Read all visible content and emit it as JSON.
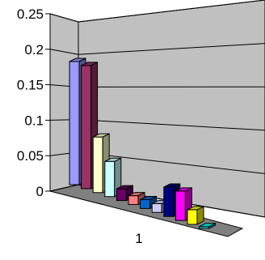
{
  "chart_data": {
    "type": "bar",
    "style": "3d-clustered-column",
    "categories": [
      "1"
    ],
    "ylim": [
      0,
      0.25
    ],
    "y_ticks": [
      "0",
      "0.05",
      "0.1",
      "0.15",
      "0.2",
      "0.25"
    ],
    "grid": true,
    "legend": "none",
    "wall_color": "#c0c0c0",
    "floor_color": "#808080",
    "series": [
      {
        "color": "#9999ff",
        "values": [
          0.21
        ]
      },
      {
        "color": "#993366",
        "values": [
          0.21
        ]
      },
      {
        "color": "#ffffcc",
        "values": [
          0.095
        ]
      },
      {
        "color": "#ccffff",
        "values": [
          0.06
        ]
      },
      {
        "color": "#660066",
        "values": [
          0.02
        ]
      },
      {
        "color": "#ff8080",
        "values": [
          0.015
        ]
      },
      {
        "color": "#0066cc",
        "values": [
          0.015
        ]
      },
      {
        "color": "#ccccff",
        "values": [
          0.015
        ]
      },
      {
        "color": "#000080",
        "values": [
          0.05
        ]
      },
      {
        "color": "#ff00ff",
        "values": [
          0.05
        ]
      },
      {
        "color": "#ffff00",
        "values": [
          0.025
        ]
      },
      {
        "color": "#00ffff",
        "values": [
          0.003
        ]
      }
    ]
  }
}
